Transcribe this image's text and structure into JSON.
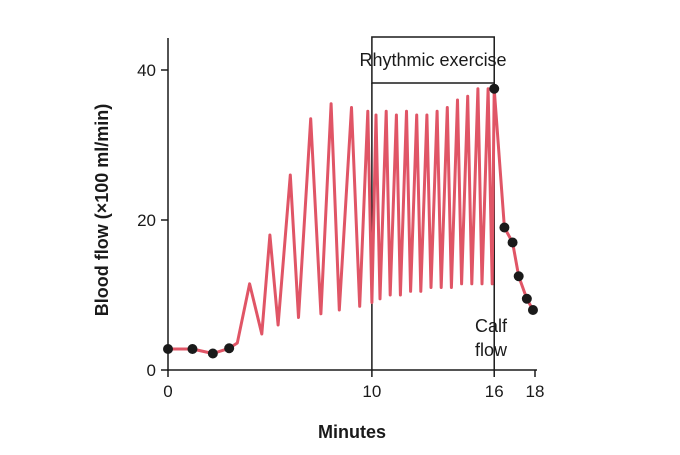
{
  "chart_data": {
    "type": "line",
    "title": "",
    "xlabel": "Minutes",
    "ylabel": "Blood flow (×100 ml/min)",
    "xlim": [
      0,
      18
    ],
    "ylim": [
      0,
      45
    ],
    "x_ticks": [
      0,
      10,
      16,
      18
    ],
    "y_ticks": [
      0,
      20,
      40
    ],
    "grid": false,
    "series_color": "#e05566",
    "marker_color": "#1a1a1a",
    "annotations": {
      "exercise_label": "Rhythmic exercise",
      "exercise_start": 10,
      "exercise_end": 16,
      "calf_label_line1": "Calf",
      "calf_label_line2": "flow"
    },
    "series": [
      {
        "name": "",
        "x": [
          0,
          1.2,
          2.2,
          3.0,
          3.4,
          4.0,
          4.6,
          5.0,
          5.4,
          6.0,
          6.4,
          7.0,
          7.5,
          8.0,
          8.4,
          9.0,
          9.4,
          9.8,
          10.0,
          10.2,
          10.4,
          10.7,
          10.9,
          11.2,
          11.4,
          11.7,
          11.9,
          12.2,
          12.4,
          12.7,
          12.9,
          13.2,
          13.4,
          13.7,
          13.9,
          14.2,
          14.4,
          14.7,
          14.9,
          15.2,
          15.4,
          15.7,
          15.9,
          16.0,
          16.5,
          16.9,
          17.2,
          17.6,
          17.9
        ],
        "y": [
          2.8,
          2.8,
          2.2,
          2.9,
          3.6,
          11.5,
          4.8,
          18.0,
          6.0,
          26.0,
          7.0,
          33.5,
          7.5,
          35.5,
          8.0,
          35.0,
          8.5,
          34.5,
          9.0,
          34.0,
          9.5,
          34.5,
          10.0,
          34.0,
          10.0,
          34.5,
          10.5,
          34.0,
          10.5,
          34.0,
          11.0,
          34.5,
          11.0,
          35.0,
          11.0,
          36.0,
          11.5,
          36.5,
          11.5,
          37.5,
          11.5,
          37.5,
          11.5,
          37.5,
          19.0,
          17.0,
          12.5,
          9.5,
          8.0
        ],
        "marker_x": [
          0,
          1.2,
          2.2,
          3.0,
          16.0,
          16.5,
          16.9,
          17.2,
          17.6,
          17.9
        ],
        "marker_y": [
          2.8,
          2.8,
          2.2,
          2.9,
          37.5,
          19.0,
          17.0,
          12.5,
          9.5,
          8.0
        ]
      }
    ]
  }
}
